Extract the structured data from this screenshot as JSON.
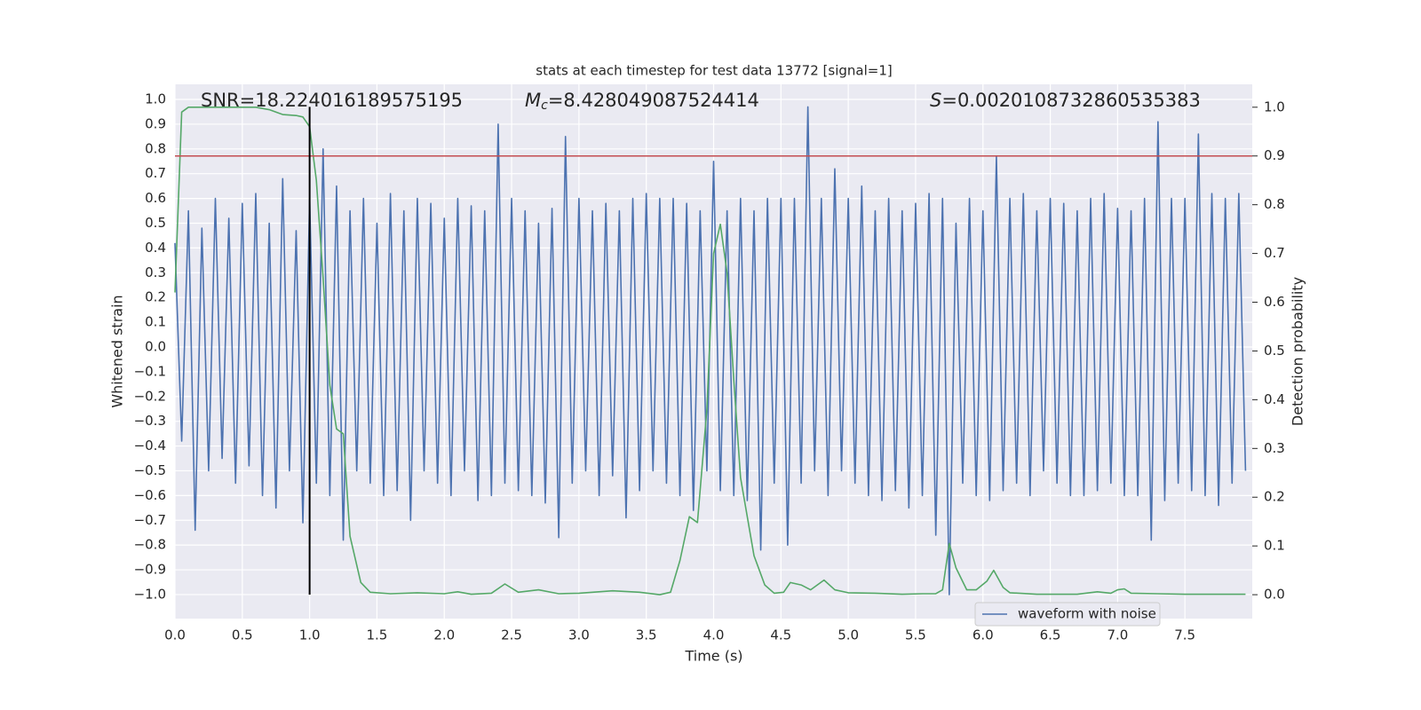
{
  "chart_data": {
    "type": "line",
    "title": "stats at each timestep for test data 13772 [signal=1]",
    "xlabel": "Time (s)",
    "ylabel": "Whitened strain",
    "y2label": "Detection probability",
    "annotations": [
      {
        "text": "SNR=18.224016189575195"
      },
      {
        "symbol": "M",
        "sub": "c",
        "text": "=8.428049087524414"
      },
      {
        "symbol": "S",
        "text": "=0.0020108732860535383"
      }
    ],
    "xlim": [
      0,
      8.0
    ],
    "ylim": [
      -1.097,
      1.061
    ],
    "y2lim": [
      -0.049,
      1.047
    ],
    "grid": true,
    "legend": "lower right",
    "xticks": [
      {
        "value": 0,
        "label": "0.0"
      },
      0.5,
      {
        "value": 1,
        "label": "1.0"
      },
      1.5,
      {
        "value": 2,
        "label": "2.0"
      },
      2.5,
      {
        "value": 3,
        "label": "3.0"
      },
      3.5,
      {
        "value": 4,
        "label": "4.0"
      },
      4.5,
      {
        "value": 5,
        "label": "5.0"
      },
      5.5,
      {
        "value": 6,
        "label": "6.0"
      },
      6.5,
      {
        "value": 7,
        "label": "7.0"
      },
      7.5
    ],
    "yticks": [
      {
        "value": -1.0,
        "label": "−1.0"
      },
      {
        "value": -0.9,
        "label": "−0.9"
      },
      {
        "value": -0.8,
        "label": "−0.8"
      },
      {
        "value": -0.7,
        "label": "−0.7"
      },
      {
        "value": -0.6,
        "label": "−0.6"
      },
      {
        "value": -0.5,
        "label": "−0.5"
      },
      {
        "value": -0.4,
        "label": "−0.4"
      },
      {
        "value": -0.3,
        "label": "−0.3"
      },
      {
        "value": -0.2,
        "label": "−0.2"
      },
      {
        "value": -0.1,
        "label": "−0.1"
      },
      {
        "value": 0,
        "label": "0.0"
      },
      0.1,
      0.2,
      0.3,
      0.4,
      0.5,
      0.6,
      0.7,
      0.8,
      0.9,
      {
        "value": 1.0,
        "label": "1.0"
      }
    ],
    "y2ticks": [
      {
        "value": 0,
        "label": "0.0"
      },
      0.1,
      0.2,
      0.3,
      0.4,
      0.5,
      0.6,
      0.7,
      0.8,
      0.9,
      {
        "value": 1.0,
        "label": "1.0"
      }
    ],
    "vline": {
      "x": 1.0,
      "ymin": -1.0,
      "ymax": 0.97,
      "color": "#000000"
    },
    "hline": {
      "y": 0.9,
      "axis": "y2",
      "color": "#c44e52"
    },
    "series": [
      {
        "name": "waveform with noise",
        "color": "#4c72b0",
        "x": [
          0,
          0.05,
          0.1,
          0.15,
          0.2,
          0.25,
          0.3,
          0.35,
          0.4,
          0.45,
          0.5,
          0.55,
          0.6,
          0.65,
          0.7,
          0.75,
          0.8,
          0.85,
          0.9,
          0.95,
          1.0,
          1.05,
          1.1,
          1.15,
          1.2,
          1.25,
          1.3,
          1.35,
          1.4,
          1.45,
          1.5,
          1.55,
          1.6,
          1.65,
          1.7,
          1.75,
          1.8,
          1.85,
          1.9,
          1.95,
          2.0,
          2.05,
          2.1,
          2.15,
          2.2,
          2.25,
          2.3,
          2.35,
          2.4,
          2.45,
          2.5,
          2.55,
          2.6,
          2.65,
          2.7,
          2.75,
          2.8,
          2.85,
          2.9,
          2.95,
          3.0,
          3.05,
          3.1,
          3.15,
          3.2,
          3.25,
          3.3,
          3.35,
          3.4,
          3.45,
          3.5,
          3.55,
          3.6,
          3.65,
          3.7,
          3.75,
          3.8,
          3.85,
          3.9,
          3.95,
          4.0,
          4.05,
          4.1,
          4.15,
          4.2,
          4.25,
          4.3,
          4.35,
          4.4,
          4.45,
          4.5,
          4.55,
          4.6,
          4.65,
          4.7,
          4.75,
          4.8,
          4.85,
          4.9,
          4.95,
          5.0,
          5.05,
          5.1,
          5.15,
          5.2,
          5.25,
          5.3,
          5.35,
          5.4,
          5.45,
          5.5,
          5.55,
          5.6,
          5.65,
          5.7,
          5.75,
          5.8,
          5.85,
          5.9,
          5.95,
          6.0,
          6.05,
          6.1,
          6.15,
          6.2,
          6.25,
          6.3,
          6.35,
          6.4,
          6.45,
          6.5,
          6.55,
          6.6,
          6.65,
          6.7,
          6.75,
          6.8,
          6.85,
          6.9,
          6.95,
          7.0,
          7.05,
          7.1,
          7.15,
          7.2,
          7.25,
          7.3,
          7.35,
          7.4,
          7.45,
          7.5,
          7.55,
          7.6,
          7.65,
          7.7,
          7.75,
          7.8,
          7.85,
          7.9,
          7.95
        ],
        "values": [
          0.42,
          -0.38,
          0.55,
          -0.74,
          0.48,
          -0.5,
          0.6,
          -0.45,
          0.52,
          -0.55,
          0.58,
          -0.48,
          0.62,
          -0.6,
          0.5,
          -0.65,
          0.68,
          -0.5,
          0.47,
          -0.71,
          0.6,
          -0.55,
          0.8,
          -0.6,
          0.65,
          -0.78,
          0.55,
          -0.5,
          0.6,
          -0.55,
          0.5,
          -0.6,
          0.62,
          -0.58,
          0.55,
          -0.7,
          0.6,
          -0.5,
          0.58,
          -0.55,
          0.52,
          -0.6,
          0.6,
          -0.5,
          0.57,
          -0.62,
          0.55,
          -0.6,
          0.9,
          -0.55,
          0.6,
          -0.58,
          0.55,
          -0.6,
          0.5,
          -0.63,
          0.56,
          -0.77,
          0.85,
          -0.55,
          0.6,
          -0.5,
          0.55,
          -0.6,
          0.58,
          -0.52,
          0.55,
          -0.69,
          0.6,
          -0.58,
          0.62,
          -0.5,
          0.6,
          -0.55,
          0.6,
          -0.6,
          0.58,
          -0.66,
          0.55,
          -0.5,
          0.75,
          -0.58,
          0.55,
          -0.6,
          0.6,
          -0.62,
          0.55,
          -0.82,
          0.6,
          -0.55,
          0.6,
          -0.8,
          0.6,
          -0.55,
          0.97,
          -0.5,
          0.6,
          -0.6,
          0.72,
          -0.5,
          0.6,
          -0.55,
          0.65,
          -0.6,
          0.55,
          -0.62,
          0.6,
          -0.58,
          0.55,
          -0.65,
          0.58,
          -0.6,
          0.62,
          -0.76,
          0.6,
          -1.0,
          0.5,
          -0.55,
          0.6,
          -0.6,
          0.55,
          -0.62,
          0.77,
          -0.58,
          0.6,
          -0.55,
          0.62,
          -0.6,
          0.55,
          -0.5,
          0.6,
          -0.55,
          0.58,
          -0.6,
          0.55,
          -0.6,
          0.6,
          -0.58,
          0.62,
          -0.55,
          0.56,
          -0.6,
          0.55,
          -0.6,
          0.6,
          -0.78,
          0.91,
          -0.62,
          0.6,
          -0.55,
          0.6,
          -0.58,
          0.86,
          -0.6,
          0.62,
          -0.64,
          0.6,
          -0.55,
          0.62,
          -0.5
        ]
      },
      {
        "color": "#55a868",
        "axis": "y2",
        "x": [
          0,
          0.05,
          0.1,
          0.3,
          0.6,
          0.7,
          0.8,
          0.9,
          0.95,
          1.0,
          1.05,
          1.1,
          1.15,
          1.2,
          1.25,
          1.3,
          1.38,
          1.45,
          1.6,
          1.8,
          2.0,
          2.1,
          2.2,
          2.35,
          2.45,
          2.55,
          2.7,
          2.85,
          3.0,
          3.25,
          3.45,
          3.6,
          3.68,
          3.75,
          3.82,
          3.88,
          3.95,
          4.0,
          4.05,
          4.1,
          4.15,
          4.2,
          4.3,
          4.38,
          4.45,
          4.52,
          4.57,
          4.65,
          4.72,
          4.82,
          4.9,
          5.0,
          5.2,
          5.4,
          5.55,
          5.65,
          5.7,
          5.75,
          5.8,
          5.88,
          5.95,
          6.03,
          6.08,
          6.15,
          6.2,
          6.4,
          6.7,
          6.85,
          6.95,
          7.0,
          7.05,
          7.1,
          7.3,
          7.5,
          7.95
        ],
        "values": [
          0.62,
          0.99,
          1.0,
          1.0,
          1.0,
          0.995,
          0.985,
          0.983,
          0.98,
          0.96,
          0.85,
          0.65,
          0.43,
          0.34,
          0.33,
          0.12,
          0.025,
          0.005,
          0.002,
          0.004,
          0.002,
          0.006,
          0.001,
          0.003,
          0.022,
          0.005,
          0.01,
          0.002,
          0.003,
          0.008,
          0.005,
          0.0,
          0.005,
          0.07,
          0.16,
          0.148,
          0.38,
          0.7,
          0.76,
          0.66,
          0.44,
          0.24,
          0.08,
          0.02,
          0.003,
          0.005,
          0.025,
          0.02,
          0.01,
          0.03,
          0.01,
          0.004,
          0.003,
          0.001,
          0.002,
          0.002,
          0.01,
          0.105,
          0.055,
          0.01,
          0.01,
          0.028,
          0.05,
          0.015,
          0.004,
          0.001,
          0.001,
          0.006,
          0.003,
          0.01,
          0.012,
          0.003,
          0.002,
          0.001,
          0.001
        ]
      }
    ]
  }
}
